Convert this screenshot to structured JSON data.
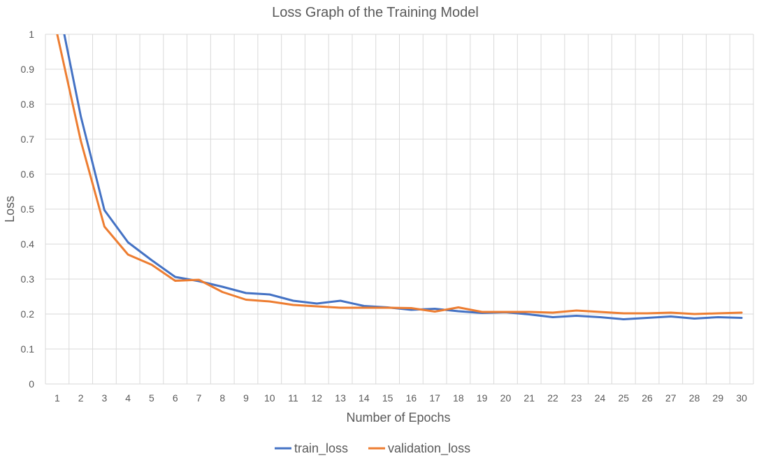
{
  "chart_data": {
    "type": "line",
    "title": "Loss Graph of the Training Model",
    "xlabel": "Number of Epochs",
    "ylabel": "Loss",
    "categories": [
      "1",
      "2",
      "3",
      "4",
      "5",
      "6",
      "7",
      "8",
      "9",
      "10",
      "11",
      "12",
      "13",
      "14",
      "15",
      "16",
      "17",
      "18",
      "19",
      "20",
      "21",
      "22",
      "23",
      "24",
      "25",
      "26",
      "27",
      "28",
      "29",
      "30"
    ],
    "ylim": [
      0,
      1
    ],
    "yticks": [
      "0",
      "0.1",
      "0.2",
      "0.3",
      "0.4",
      "0.5",
      "0.6",
      "0.7",
      "0.8",
      "0.9",
      "1"
    ],
    "grid": true,
    "legend": "bottom-center",
    "series": [
      {
        "name": "train_loss",
        "color": "#4472C4",
        "values": [
          1.1,
          0.765,
          0.497,
          0.405,
          0.354,
          0.306,
          0.294,
          0.278,
          0.26,
          0.256,
          0.238,
          0.23,
          0.238,
          0.223,
          0.219,
          0.212,
          0.215,
          0.208,
          0.203,
          0.205,
          0.199,
          0.191,
          0.195,
          0.191,
          0.185,
          0.189,
          0.193,
          0.187,
          0.191,
          0.189
        ]
      },
      {
        "name": "validation_loss",
        "color": "#ED7D31",
        "values": [
          1.0,
          0.695,
          0.45,
          0.37,
          0.341,
          0.295,
          0.298,
          0.263,
          0.241,
          0.236,
          0.226,
          0.222,
          0.218,
          0.218,
          0.218,
          0.217,
          0.207,
          0.219,
          0.206,
          0.206,
          0.206,
          0.204,
          0.21,
          0.206,
          0.202,
          0.202,
          0.204,
          0.2,
          0.202,
          0.204
        ]
      }
    ]
  }
}
